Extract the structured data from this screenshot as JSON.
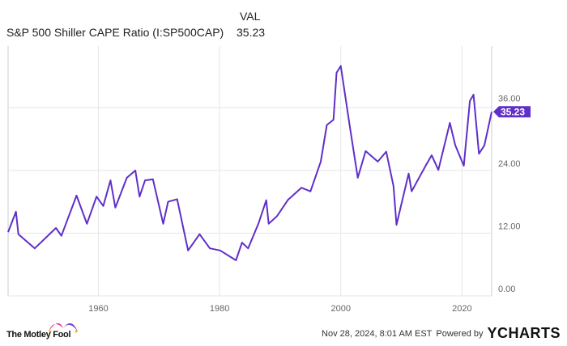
{
  "header": {
    "series_label": "S&P 500 Shiller CAPE Ratio (I:SP500CAP)",
    "value_header": "VAL",
    "value": "35.23"
  },
  "chart_data": {
    "type": "line",
    "title": "",
    "xlabel": "",
    "ylabel": "",
    "xlim": [
      1945.1,
      2024.9
    ],
    "ylim": [
      0,
      47.8
    ],
    "grid": true,
    "x_ticks": [
      "1960",
      "1980",
      "2000",
      "2020"
    ],
    "y_ticks": [
      "0.00",
      "12.00",
      "24.00",
      "36.00"
    ],
    "y_axis_side": "right",
    "series": [
      {
        "color": "#5f2fc8",
        "x": [
          1945.1,
          1946.4,
          1946.8,
          1949.5,
          1953,
          1953.9,
          1956.4,
          1958.1,
          1959.7,
          1960.8,
          1962,
          1962.8,
          1964.7,
          1966.1,
          1966.8,
          1967.7,
          1969,
          1970.7,
          1971.5,
          1973,
          1974.8,
          1976.7,
          1978.4,
          1980.1,
          1982.7,
          1983.7,
          1984.7,
          1986.4,
          1987.7,
          1988.1,
          1989.5,
          1991.3,
          1993.5,
          1995,
          1996.7,
          1997.7,
          1998.8,
          1999.3,
          2000,
          2001.5,
          2002.8,
          2004.1,
          2006.1,
          2007.5,
          2008.7,
          2009.2,
          2011.2,
          2011.7,
          2014,
          2015,
          2016.1,
          2018,
          2018.9,
          2020.3,
          2021.3,
          2021.9,
          2022.8,
          2023.7,
          2024.9
        ],
        "y": [
          12.2,
          16.1,
          11.8,
          9.1,
          13,
          11.5,
          19.2,
          13.8,
          19,
          17.2,
          22.1,
          16.9,
          22.6,
          24,
          19,
          22.1,
          22.3,
          13.8,
          18,
          18.5,
          8.7,
          11.8,
          9.1,
          8.7,
          6.8,
          10.2,
          9.1,
          13.8,
          18.3,
          13.8,
          15.3,
          18.4,
          20.7,
          20,
          25.7,
          32.7,
          33.7,
          42.7,
          44,
          32.4,
          22.6,
          27.7,
          25.7,
          27.6,
          21,
          13.6,
          23.4,
          20,
          24.9,
          26.9,
          24.1,
          33.1,
          28.8,
          24.9,
          37.3,
          38.5,
          27.2,
          28.8,
          35.23
        ]
      }
    ],
    "last_value_label": "35.23"
  },
  "footer": {
    "brand": "The Motley Fool",
    "timestamp": "Nov 28, 2024, 8:01 AM EST",
    "powered_by": "Powered by",
    "provider": "YCHARTS"
  }
}
